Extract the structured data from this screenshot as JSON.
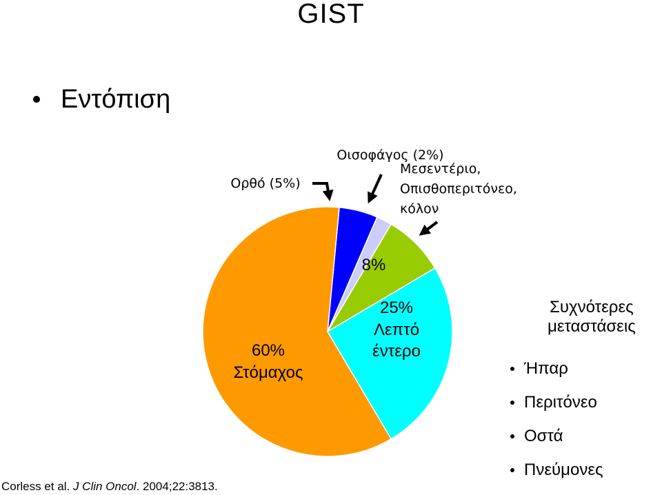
{
  "slide": {
    "title": "GIST",
    "bullet": "Εντόπιση",
    "citation": {
      "authors": "Corless et al. ",
      "journal": "J Clin Oncol",
      "details": ". 2004;22:3813."
    }
  },
  "chart_data": {
    "type": "pie",
    "title": "",
    "slices": [
      {
        "key": "stomach",
        "value": 60,
        "color": "#ff9900"
      },
      {
        "key": "rectum",
        "value": 5,
        "color": "#0000ff"
      },
      {
        "key": "esophagus",
        "value": 2,
        "color": "#ccccff"
      },
      {
        "key": "mesentery",
        "value": 8,
        "color": "#99cc00"
      },
      {
        "key": "small_intestine",
        "value": 25,
        "color": "#00ffff"
      }
    ],
    "labels": {
      "stomach_pct": "60%",
      "stomach_name": "Στόμαχος",
      "small_intestine_pct": "25%",
      "small_intestine_line1": "Λεπτό",
      "small_intestine_line2": "έντερο",
      "mesentery_pct": "8%",
      "rectum": "Ορθό (5%)",
      "esophagus": "Οισοφάγος (2%)",
      "mesentery_line1": "Μεσεντέριο,",
      "mesentery_line2": "Οπισθοπεριτόνεο,",
      "mesentery_line3": "κόλον"
    }
  },
  "metastases": {
    "title_line1": "Συχνότερες",
    "title_line2": "μεταστάσεις",
    "items": [
      "Ήπαρ",
      "Περιτόνεο",
      "Οστά",
      "Πνεύμονες"
    ]
  }
}
